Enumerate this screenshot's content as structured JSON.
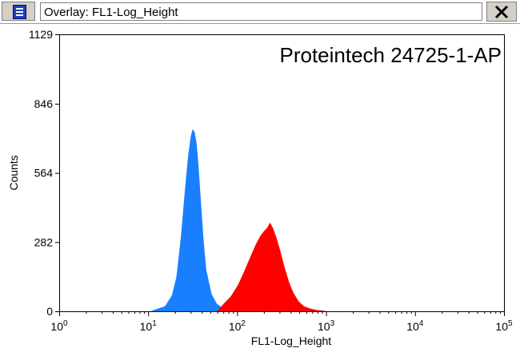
{
  "window": {
    "title": "Overlay: FL1-Log_Height",
    "app_icon": "document-icon",
    "close_label": "close-icon"
  },
  "chart_data": {
    "type": "area",
    "title": "",
    "annotation": "Proteintech 24725-1-AP",
    "xlabel": "FL1-Log_Height",
    "ylabel": "Counts",
    "xscale": "log",
    "xlim": [
      1,
      100000
    ],
    "ylim": [
      0,
      1129
    ],
    "x_ticks": [
      {
        "base": "10",
        "exp": "0"
      },
      {
        "base": "10",
        "exp": "1"
      },
      {
        "base": "10",
        "exp": "2"
      },
      {
        "base": "10",
        "exp": "3"
      },
      {
        "base": "10",
        "exp": "4"
      },
      {
        "base": "10",
        "exp": "5"
      }
    ],
    "y_ticks": [
      "0",
      "282",
      "564",
      "846",
      "1129"
    ],
    "grid": false,
    "series": [
      {
        "color": "#1a7fff",
        "x": [
          10.7,
          12.9,
          15.5,
          18.6,
          20.9,
          23.4,
          25.7,
          28.2,
          30.2,
          31.6,
          33.1,
          34.7,
          36.3,
          38.9,
          41.7,
          44.7,
          51.3,
          58.9,
          70.8,
          85.1
        ],
        "y": [
          0,
          10,
          20,
          65,
          140,
          300,
          470,
          630,
          710,
          740,
          730,
          690,
          610,
          450,
          290,
          170,
          70,
          30,
          10,
          0
        ]
      },
      {
        "color": "#ff0000",
        "x": [
          60,
          70.8,
          85.1,
          102,
          120,
          141,
          162,
          182,
          200,
          219,
          234,
          251,
          275,
          302,
          339,
          380,
          427,
          490,
          562,
          661,
          776,
          912,
          1000
        ],
        "y": [
          0,
          30,
          60,
          105,
          160,
          220,
          270,
          305,
          325,
          340,
          360,
          340,
          300,
          250,
          180,
          120,
          75,
          40,
          20,
          10,
          5,
          2,
          0
        ]
      }
    ]
  }
}
